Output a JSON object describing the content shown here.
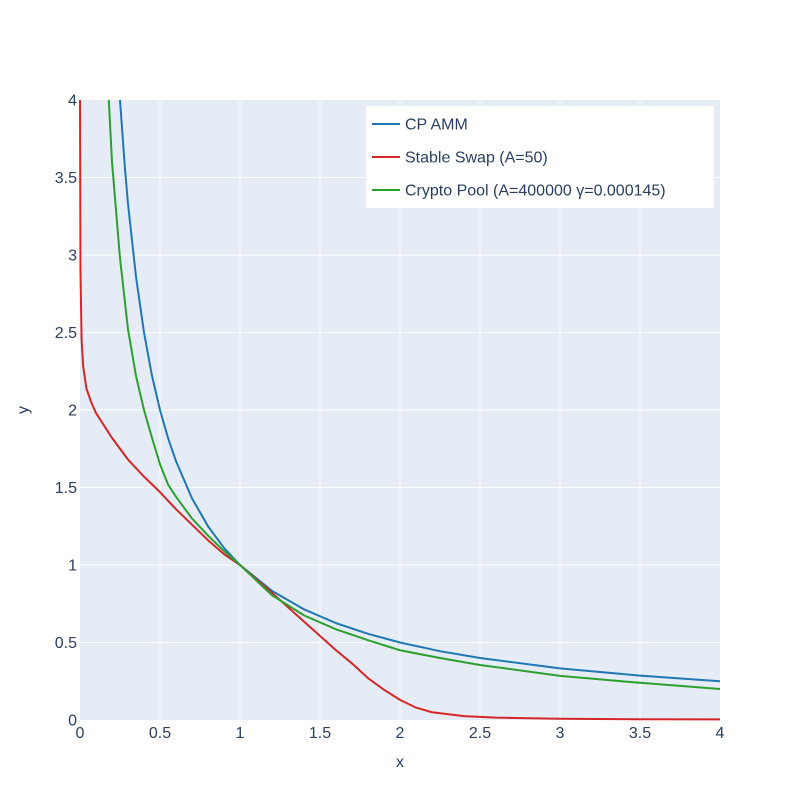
{
  "chart_data": {
    "type": "line",
    "title": "",
    "xlabel": "x",
    "ylabel": "y",
    "xlim": [
      0,
      4
    ],
    "ylim": [
      0,
      4
    ],
    "x_ticks": [
      "0",
      "0.5",
      "1",
      "1.5",
      "2",
      "2.5",
      "3",
      "3.5",
      "4"
    ],
    "y_ticks": [
      "0",
      "0.5",
      "1",
      "1.5",
      "2",
      "2.5",
      "3",
      "3.5",
      "4"
    ],
    "grid": true,
    "legend_position": "top-right",
    "colors": {
      "plot_background": "#e5ecf6",
      "grid": "#ffffff",
      "text": "#2a3f5f"
    },
    "series": [
      {
        "name": "CP AMM",
        "color": "#1f77b4",
        "points": [
          [
            0.25,
            4.0
          ],
          [
            0.28,
            3.57
          ],
          [
            0.3,
            3.33
          ],
          [
            0.35,
            2.86
          ],
          [
            0.4,
            2.5
          ],
          [
            0.45,
            2.22
          ],
          [
            0.5,
            2.0
          ],
          [
            0.55,
            1.82
          ],
          [
            0.6,
            1.67
          ],
          [
            0.7,
            1.43
          ],
          [
            0.8,
            1.25
          ],
          [
            0.9,
            1.11
          ],
          [
            1.0,
            1.0
          ],
          [
            1.2,
            0.833
          ],
          [
            1.4,
            0.714
          ],
          [
            1.6,
            0.625
          ],
          [
            1.8,
            0.556
          ],
          [
            2.0,
            0.5
          ],
          [
            2.25,
            0.444
          ],
          [
            2.5,
            0.4
          ],
          [
            3.0,
            0.333
          ],
          [
            3.5,
            0.286
          ],
          [
            4.0,
            0.25
          ]
        ]
      },
      {
        "name": "Stable Swap (A=50)",
        "color": "#d62728",
        "points": [
          [
            0.0,
            4.0
          ],
          [
            0.003,
            2.9
          ],
          [
            0.01,
            2.45
          ],
          [
            0.02,
            2.28
          ],
          [
            0.04,
            2.14
          ],
          [
            0.07,
            2.05
          ],
          [
            0.1,
            1.98
          ],
          [
            0.2,
            1.82
          ],
          [
            0.3,
            1.68
          ],
          [
            0.4,
            1.57
          ],
          [
            0.5,
            1.47
          ],
          [
            0.6,
            1.36
          ],
          [
            0.7,
            1.26
          ],
          [
            0.8,
            1.16
          ],
          [
            0.9,
            1.07
          ],
          [
            1.0,
            1.0
          ],
          [
            1.2,
            0.82
          ],
          [
            1.4,
            0.635
          ],
          [
            1.6,
            0.45
          ],
          [
            1.7,
            0.365
          ],
          [
            1.8,
            0.27
          ],
          [
            1.9,
            0.195
          ],
          [
            2.0,
            0.13
          ],
          [
            2.1,
            0.08
          ],
          [
            2.2,
            0.05
          ],
          [
            2.4,
            0.025
          ],
          [
            2.6,
            0.015
          ],
          [
            3.0,
            0.008
          ],
          [
            3.5,
            0.005
          ],
          [
            4.0,
            0.004
          ]
        ]
      },
      {
        "name": "Crypto Pool (A=400000 γ=0.000145)",
        "color": "#2ca02c",
        "points": [
          [
            0.18,
            4.0
          ],
          [
            0.2,
            3.6
          ],
          [
            0.25,
            2.98
          ],
          [
            0.3,
            2.52
          ],
          [
            0.35,
            2.22
          ],
          [
            0.4,
            2.0
          ],
          [
            0.45,
            1.82
          ],
          [
            0.5,
            1.65
          ],
          [
            0.55,
            1.52
          ],
          [
            0.6,
            1.44
          ],
          [
            0.7,
            1.3
          ],
          [
            0.8,
            1.19
          ],
          [
            0.9,
            1.09
          ],
          [
            1.0,
            1.0
          ],
          [
            1.2,
            0.805
          ],
          [
            1.4,
            0.675
          ],
          [
            1.6,
            0.585
          ],
          [
            1.8,
            0.515
          ],
          [
            2.0,
            0.45
          ],
          [
            2.25,
            0.4
          ],
          [
            2.5,
            0.355
          ],
          [
            3.0,
            0.285
          ],
          [
            3.5,
            0.24
          ],
          [
            4.0,
            0.2
          ]
        ]
      }
    ]
  }
}
